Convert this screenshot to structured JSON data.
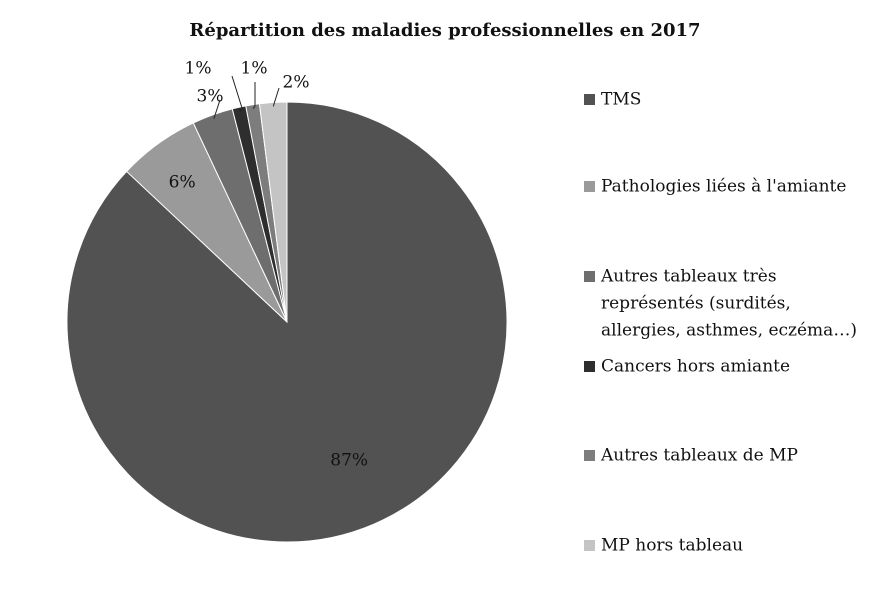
{
  "chart_data": {
    "type": "pie",
    "title": "Répartition des maladies professionnelles en 2017",
    "categories": [
      "TMS",
      "Pathologies liées à l'amiante",
      "Autres tableaux très représentés (surdités, allergies, asthmes, eczéma…)",
      "Cancers hors amiante",
      "Autres tableaux de MP",
      "MP hors tableau"
    ],
    "legend_lines": [
      [
        "TMS"
      ],
      [
        "Pathologies liées à l'amiante"
      ],
      [
        "Autres tableaux très",
        "représentés (surdités,",
        "allergies, asthmes, eczéma…)"
      ],
      [
        "Cancers hors amiante"
      ],
      [
        "Autres tableaux de MP"
      ],
      [
        "MP hors tableau"
      ]
    ],
    "values": [
      87,
      6,
      3,
      1,
      1,
      2
    ],
    "labels": [
      "87%",
      "6%",
      "3%",
      "1%",
      "1%",
      "2%"
    ],
    "colors": [
      "#525252",
      "#9a9a9a",
      "#6e6e6e",
      "#2e2e2e",
      "#7d7d7d",
      "#c4c4c4"
    ],
    "legend_position": "right",
    "start_angle_deg": 0,
    "direction": "clockwise"
  }
}
